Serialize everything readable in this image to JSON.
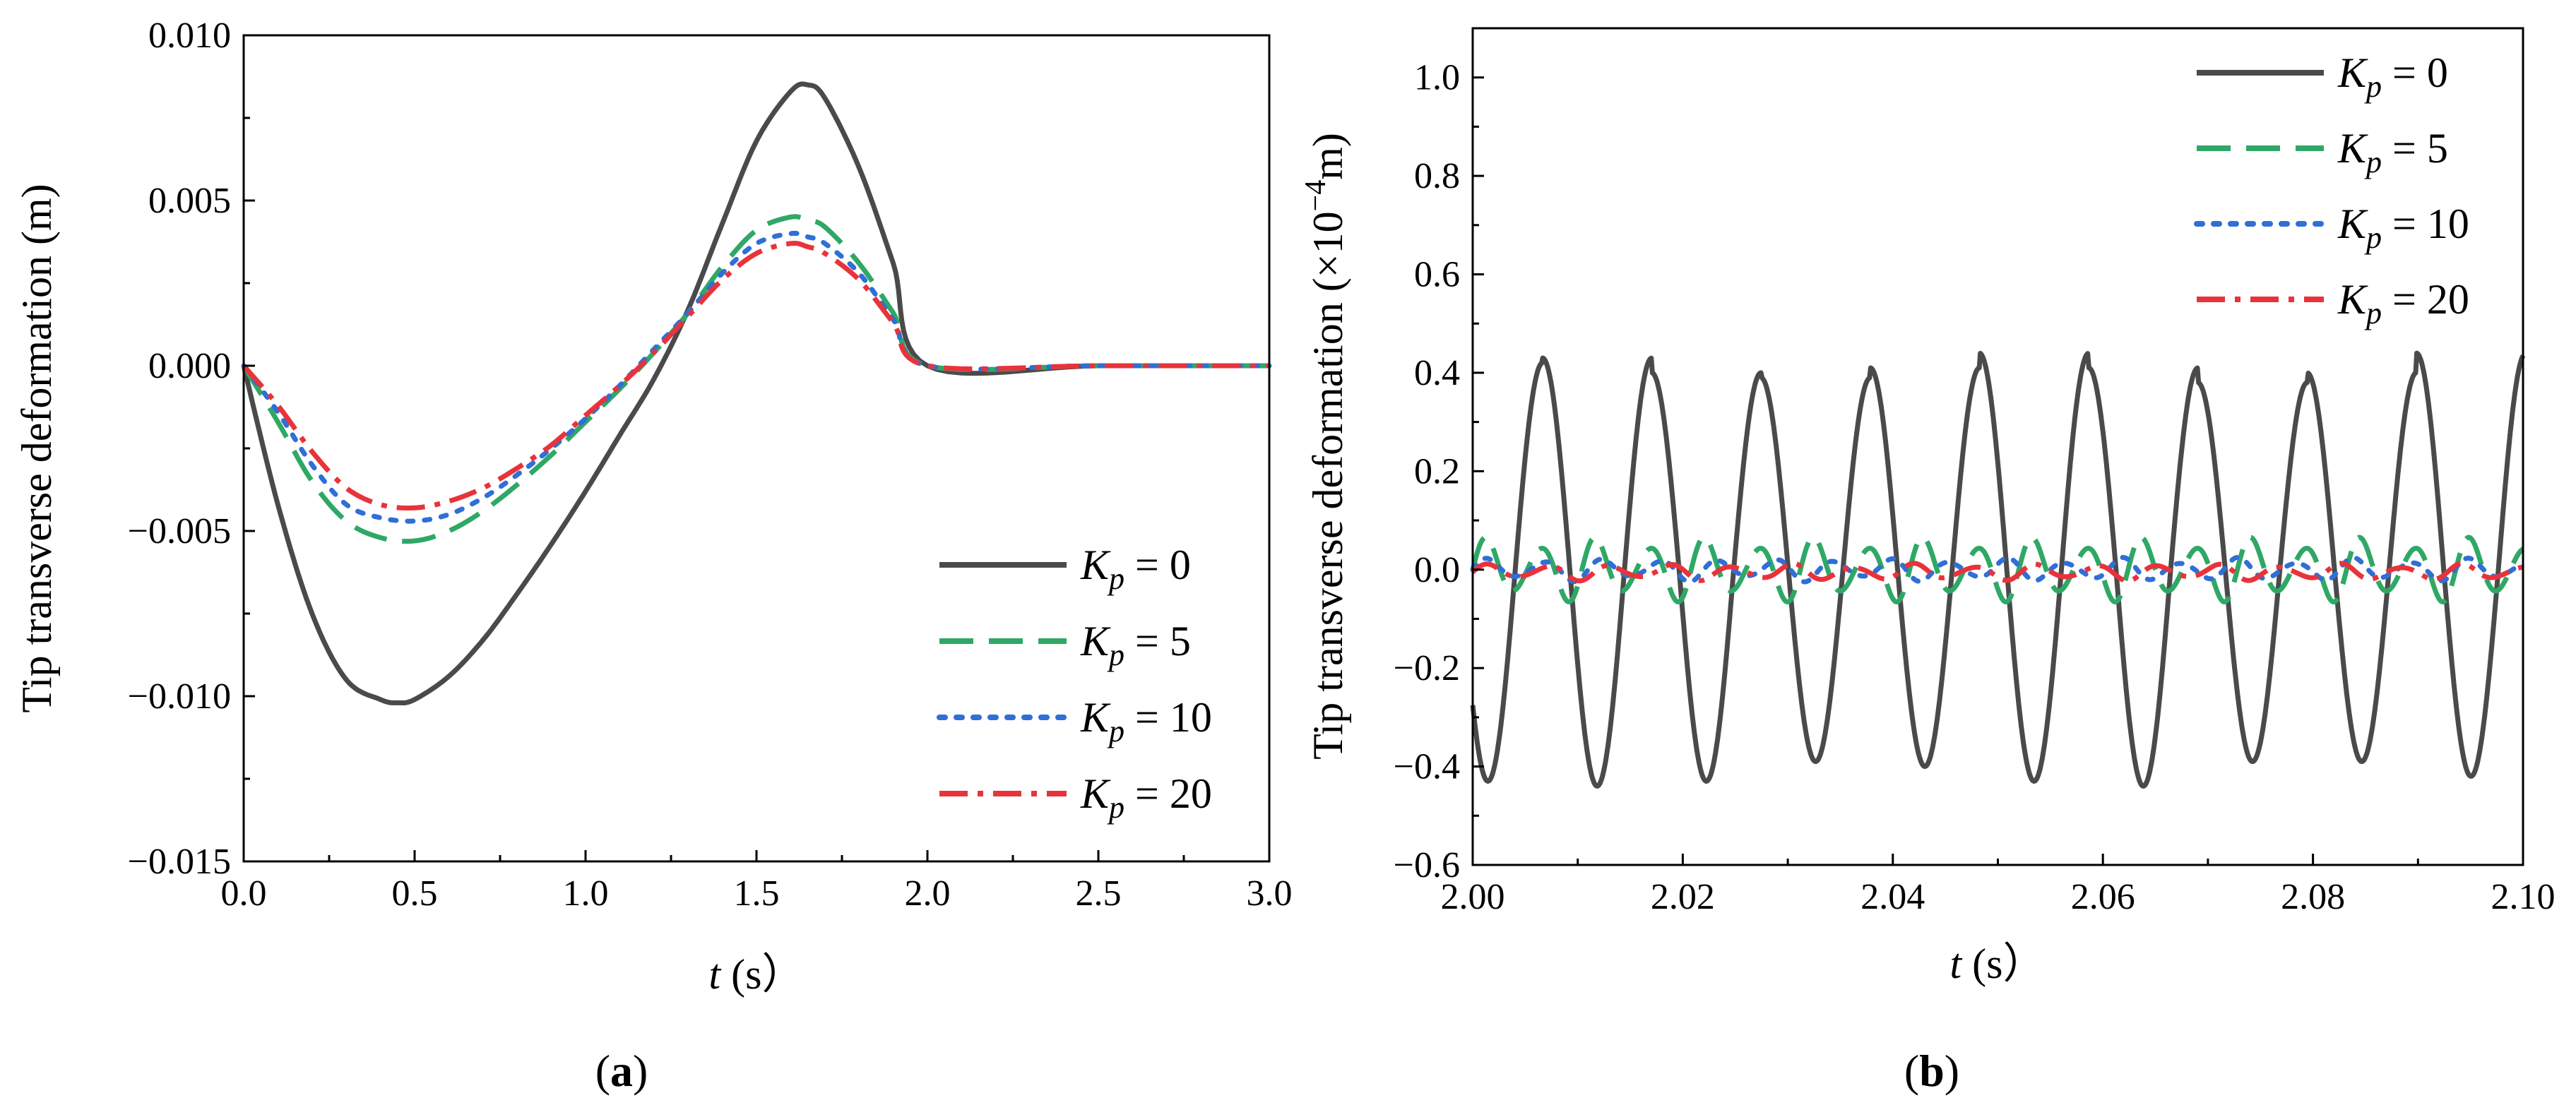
{
  "colors": {
    "kp0": "#4a4a4a",
    "kp5": "#2fa866",
    "kp10": "#2f6fd6",
    "kp20": "#e8333b"
  },
  "legend": {
    "kp0": {
      "sym": "K",
      "sub": "p",
      "val": " = 0"
    },
    "kp5": {
      "sym": "K",
      "sub": "p",
      "val": " = 5"
    },
    "kp10": {
      "sym": "K",
      "sub": "p",
      "val": " = 10"
    },
    "kp20": {
      "sym": "K",
      "sub": "p",
      "val": " = 20"
    }
  },
  "panels": {
    "a": {
      "label_open": "(",
      "label_letter": "a",
      "label_close": ")",
      "ylabel": "Tip transverse deformation (m)",
      "xlabel_var": "t",
      "xlabel_unit": " (s）"
    },
    "b": {
      "label_open": "(",
      "label_letter": "b",
      "label_close": ")",
      "ylabel_pre": "Tip transverse deformation (×10",
      "ylabel_exp": "−4",
      "ylabel_post": "m)",
      "xlabel_var": "t",
      "xlabel_unit": " (s）"
    }
  },
  "chart_data": [
    {
      "type": "line",
      "panel": "a",
      "xlabel": "t (s）",
      "ylabel": "Tip transverse deformation (m)",
      "xlim": [
        0,
        3
      ],
      "ylim": [
        -0.015,
        0.01
      ],
      "xticks": [
        0,
        0.5,
        1,
        1.5,
        2,
        2.5,
        3
      ],
      "xtick_labels": [
        "0.0",
        "0.5",
        "1.0",
        "1.5",
        "2.0",
        "2.5",
        "3.0"
      ],
      "yticks": [
        0.01,
        0.005,
        0,
        -0.005,
        -0.01,
        -0.015
      ],
      "ytick_labels": [
        "0.010",
        "0.005",
        "0.000",
        "−0.005",
        "−0.010",
        "−0.015"
      ],
      "legend_position": "lower-right",
      "series": [
        {
          "name": "Kp = 0",
          "key": "kp0",
          "style": "solid",
          "x": [
            0,
            0.1,
            0.2,
            0.3,
            0.4,
            0.45,
            0.5,
            0.6,
            0.7,
            0.8,
            0.9,
            1.0,
            1.1,
            1.2,
            1.3,
            1.4,
            1.5,
            1.6,
            1.65,
            1.7,
            1.8,
            1.9,
            2.0,
            2.5,
            3.0
          ],
          "y": [
            0,
            -0.0042,
            -0.0075,
            -0.0095,
            -0.0101,
            -0.0102,
            -0.0101,
            -0.0094,
            -0.0083,
            -0.0069,
            -0.0054,
            -0.0038,
            -0.0021,
            -0.0004,
            0.0017,
            0.0043,
            0.0068,
            0.0083,
            0.0085,
            0.0081,
            0.006,
            0.0031,
            0,
            0,
            0
          ]
        },
        {
          "name": "Kp = 5",
          "key": "kp5",
          "style": "dashed",
          "x": [
            0,
            0.1,
            0.2,
            0.3,
            0.4,
            0.5,
            0.6,
            0.7,
            0.8,
            0.9,
            1.0,
            1.1,
            1.2,
            1.3,
            1.4,
            1.5,
            1.6,
            1.65,
            1.7,
            1.8,
            1.9,
            2.0,
            2.5,
            3.0
          ],
          "y": [
            0,
            -0.0017,
            -0.0035,
            -0.0047,
            -0.0052,
            -0.0053,
            -0.005,
            -0.0044,
            -0.0036,
            -0.0027,
            -0.0017,
            -0.0007,
            0.0004,
            0.0016,
            0.003,
            0.0041,
            0.0045,
            0.0044,
            0.0042,
            0.0031,
            0.0016,
            0,
            0,
            0
          ]
        },
        {
          "name": "Kp = 10",
          "key": "kp10",
          "style": "dotted",
          "x": [
            0,
            0.1,
            0.2,
            0.3,
            0.4,
            0.5,
            0.6,
            0.7,
            0.8,
            0.9,
            1.0,
            1.1,
            1.2,
            1.3,
            1.4,
            1.5,
            1.6,
            1.65,
            1.7,
            1.8,
            1.9,
            2.0,
            2.5,
            3.0
          ],
          "y": [
            0,
            -0.0014,
            -0.003,
            -0.0042,
            -0.0046,
            -0.0047,
            -0.0045,
            -0.004,
            -0.0033,
            -0.0025,
            -0.0016,
            -0.0006,
            0.0005,
            0.0016,
            0.0028,
            0.0037,
            0.004,
            0.0039,
            0.0037,
            0.0028,
            0.0014,
            0,
            0,
            0
          ]
        },
        {
          "name": "Kp = 20",
          "key": "kp20",
          "style": "dashdot",
          "x": [
            0,
            0.1,
            0.2,
            0.3,
            0.4,
            0.5,
            0.6,
            0.7,
            0.8,
            0.9,
            1.0,
            1.1,
            1.2,
            1.3,
            1.4,
            1.5,
            1.6,
            1.65,
            1.7,
            1.8,
            1.9,
            2.0,
            2.5,
            3.0
          ],
          "y": [
            0,
            -0.0012,
            -0.0026,
            -0.0037,
            -0.0042,
            -0.0043,
            -0.0041,
            -0.0037,
            -0.0031,
            -0.0024,
            -0.0015,
            -0.0006,
            0.0004,
            0.0015,
            0.0026,
            0.0034,
            0.0037,
            0.0036,
            0.0034,
            0.0026,
            0.0013,
            0,
            0,
            0
          ]
        }
      ]
    },
    {
      "type": "line",
      "panel": "b",
      "xlabel": "t (s）",
      "ylabel": "Tip transverse deformation (×10−4m)",
      "xlim": [
        2.0,
        2.1
      ],
      "ylim": [
        -0.6,
        1.1
      ],
      "xticks": [
        2.0,
        2.02,
        2.04,
        2.06,
        2.08,
        2.1
      ],
      "xtick_labels": [
        "2.00",
        "2.02",
        "2.04",
        "2.06",
        "2.08",
        "2.10"
      ],
      "yticks": [
        1.0,
        0.8,
        0.6,
        0.4,
        0.2,
        0,
        -0.2,
        -0.4,
        -0.6
      ],
      "ytick_labels": [
        "1.0",
        "0.8",
        "0.6",
        "0.4",
        "0.2",
        "0.0",
        "−0.2",
        "−0.4",
        "−0.6"
      ],
      "legend_position": "top-right",
      "series": [
        {
          "name": "Kp = 0",
          "key": "kp0",
          "style": "solid",
          "model": {
            "kind": "sine",
            "period": 0.0104,
            "phase_t": 0.00405,
            "amplitude": 0.42,
            "offset": 0,
            "peaks": [
              0.42,
              0.43,
              0.4,
              0.39,
              0.41,
              0.44,
              0.41,
              0.38,
              0.4,
              0.44
            ],
            "troughs": [
              -0.43,
              -0.44,
              -0.43,
              -0.39,
              -0.4,
              -0.43,
              -0.44,
              -0.39,
              -0.39,
              -0.42
            ]
          }
        },
        {
          "name": "Kp = 5",
          "key": "kp5",
          "style": "dashed",
          "model": {
            "kind": "beat",
            "period": 0.0052,
            "amplitude": 0.07,
            "beat_period": 0.0104,
            "beat_depth": 0.45,
            "offset": 0
          }
        },
        {
          "name": "Kp = 10",
          "key": "kp10",
          "style": "dotted",
          "model": {
            "kind": "beat",
            "period": 0.0055,
            "amplitude": 0.025,
            "beat_period": 0.0104,
            "beat_depth": 0.5,
            "offset": 0
          }
        },
        {
          "name": "Kp = 20",
          "key": "kp20",
          "style": "dashdot",
          "model": {
            "kind": "beat",
            "period": 0.0058,
            "amplitude": 0.018,
            "beat_period": 0.0104,
            "beat_depth": 0.5,
            "offset": -0.005
          }
        }
      ]
    }
  ]
}
